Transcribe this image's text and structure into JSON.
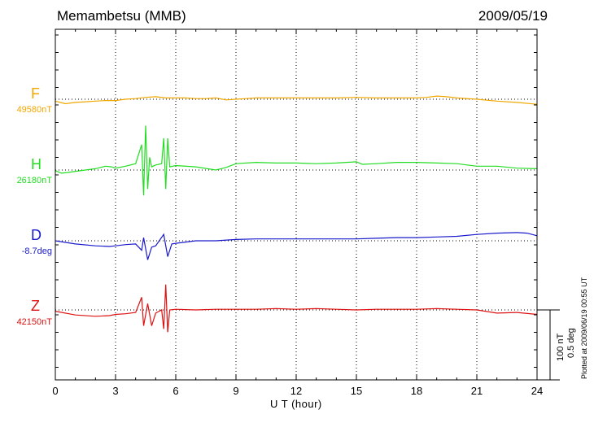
{
  "station": "Memambetsu (MMB)",
  "date": "2009/05/19",
  "plotted_at": "Plotted at 2009/06/19 00:55 UT",
  "scale_bar": {
    "nt": "100 nT",
    "deg": "0.5 deg"
  },
  "chart_data": {
    "type": "line",
    "xlabel": "U T (hour)",
    "xlim": [
      0,
      24
    ],
    "xticks": [
      0,
      3,
      6,
      9,
      12,
      15,
      18,
      21,
      24
    ],
    "grid": true,
    "series": [
      {
        "name": "F",
        "baseline": "49580nT",
        "color": "#f0a800",
        "points": [
          [
            0,
            3
          ],
          [
            0.5,
            7
          ],
          [
            1,
            5
          ],
          [
            1.5,
            4
          ],
          [
            2,
            3
          ],
          [
            2.5,
            2
          ],
          [
            3,
            2
          ],
          [
            3.5,
            0
          ],
          [
            4,
            -1
          ],
          [
            4.5,
            -3
          ],
          [
            5,
            -4
          ],
          [
            5.5,
            -2
          ],
          [
            6,
            -2
          ],
          [
            6.5,
            -2
          ],
          [
            7,
            -1
          ],
          [
            7.5,
            -1
          ],
          [
            8,
            -2
          ],
          [
            8.5,
            1
          ],
          [
            9,
            0
          ],
          [
            9.5,
            -1
          ],
          [
            10,
            -2
          ],
          [
            11,
            -2
          ],
          [
            12,
            -2
          ],
          [
            13,
            -2
          ],
          [
            14,
            -2
          ],
          [
            15,
            -3
          ],
          [
            16,
            -2
          ],
          [
            17,
            -2
          ],
          [
            18,
            -2
          ],
          [
            18.5,
            -3
          ],
          [
            19,
            -5
          ],
          [
            19.5,
            -4
          ],
          [
            20,
            -2
          ],
          [
            21,
            0
          ],
          [
            22,
            3
          ],
          [
            23,
            5
          ],
          [
            24,
            8
          ]
        ]
      },
      {
        "name": "H",
        "baseline": "26180nT",
        "color": "#22dd22",
        "points": [
          [
            0,
            1
          ],
          [
            0.3,
            5
          ],
          [
            0.6,
            4
          ],
          [
            1,
            2
          ],
          [
            1.5,
            0
          ],
          [
            2,
            -2
          ],
          [
            2.5,
            -6
          ],
          [
            2.8,
            -5
          ],
          [
            3,
            -3
          ],
          [
            3.5,
            -6
          ],
          [
            4,
            -10
          ],
          [
            4.3,
            -40
          ],
          [
            4.4,
            40
          ],
          [
            4.5,
            -70
          ],
          [
            4.6,
            30
          ],
          [
            4.7,
            -20
          ],
          [
            4.8,
            -5
          ],
          [
            5,
            -8
          ],
          [
            5.3,
            -10
          ],
          [
            5.4,
            -50
          ],
          [
            5.5,
            30
          ],
          [
            5.6,
            -50
          ],
          [
            5.7,
            -5
          ],
          [
            6,
            -7
          ],
          [
            7,
            -5
          ],
          [
            8,
            0
          ],
          [
            8.5,
            -4
          ],
          [
            9,
            -10
          ],
          [
            10,
            -12
          ],
          [
            11,
            -11
          ],
          [
            12,
            -11
          ],
          [
            13,
            -10
          ],
          [
            14,
            -11
          ],
          [
            15,
            -13
          ],
          [
            15.3,
            -9
          ],
          [
            16,
            -10
          ],
          [
            17,
            -12
          ],
          [
            18,
            -12
          ],
          [
            19,
            -11
          ],
          [
            20,
            -10
          ],
          [
            21,
            -6
          ],
          [
            22,
            -6
          ],
          [
            23,
            -3
          ],
          [
            24,
            -2
          ]
        ]
      },
      {
        "name": "D",
        "baseline": "-8.7deg",
        "color": "#1a1acc",
        "points": [
          [
            0,
            0
          ],
          [
            1,
            5
          ],
          [
            2,
            8
          ],
          [
            2.7,
            9
          ],
          [
            3,
            8
          ],
          [
            3.5,
            6
          ],
          [
            4,
            5
          ],
          [
            4.3,
            15
          ],
          [
            4.4,
            -5
          ],
          [
            4.6,
            30
          ],
          [
            4.8,
            10
          ],
          [
            5,
            8
          ],
          [
            5.4,
            -10
          ],
          [
            5.6,
            25
          ],
          [
            5.8,
            5
          ],
          [
            6,
            4
          ],
          [
            7,
            0
          ],
          [
            8,
            0
          ],
          [
            9,
            -2
          ],
          [
            10,
            -3
          ],
          [
            11,
            -3
          ],
          [
            12,
            -3
          ],
          [
            13,
            -3
          ],
          [
            14,
            -3
          ],
          [
            15,
            -3
          ],
          [
            16,
            -4
          ],
          [
            17,
            -5
          ],
          [
            18,
            -5
          ],
          [
            19,
            -6
          ],
          [
            20,
            -7
          ],
          [
            21,
            -10
          ],
          [
            22,
            -12
          ],
          [
            23,
            -13
          ],
          [
            23.5,
            -12
          ],
          [
            24,
            -8
          ]
        ]
      },
      {
        "name": "Z",
        "baseline": "42150nT",
        "color": "#dd1111",
        "points": [
          [
            0,
            2
          ],
          [
            1,
            8
          ],
          [
            2,
            10
          ],
          [
            2.7,
            9
          ],
          [
            3,
            7
          ],
          [
            3.5,
            6
          ],
          [
            4,
            4
          ],
          [
            4.3,
            -20
          ],
          [
            4.4,
            25
          ],
          [
            4.6,
            -10
          ],
          [
            4.8,
            25
          ],
          [
            5,
            5
          ],
          [
            5.3,
            0
          ],
          [
            5.4,
            30
          ],
          [
            5.5,
            -40
          ],
          [
            5.6,
            35
          ],
          [
            5.7,
            0
          ],
          [
            6,
            -1
          ],
          [
            7,
            0
          ],
          [
            8,
            -1
          ],
          [
            9,
            -1
          ],
          [
            10,
            -1
          ],
          [
            11,
            -2
          ],
          [
            12,
            -1
          ],
          [
            13,
            -2
          ],
          [
            14,
            -1
          ],
          [
            15,
            0
          ],
          [
            16,
            -1
          ],
          [
            17,
            -1
          ],
          [
            18,
            -1
          ],
          [
            19,
            -2
          ],
          [
            20,
            -1
          ],
          [
            21,
            0
          ],
          [
            22,
            5
          ],
          [
            23,
            4
          ],
          [
            24,
            7
          ]
        ]
      }
    ]
  }
}
